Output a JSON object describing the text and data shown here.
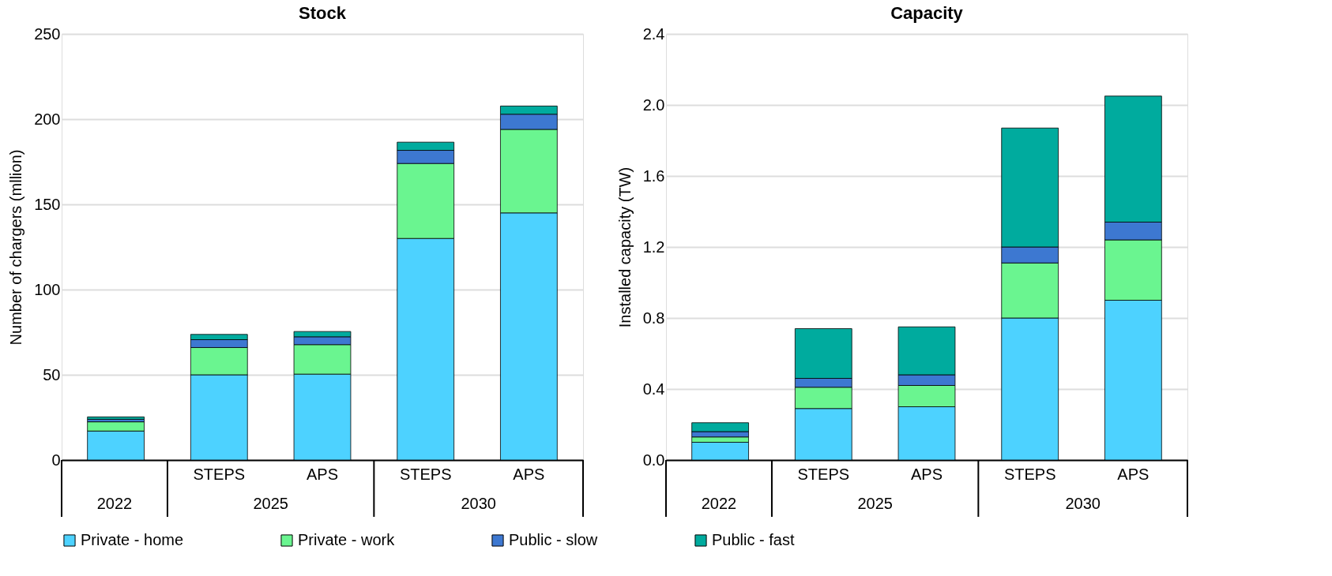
{
  "chart_data": [
    {
      "type": "bar",
      "title": "Stock",
      "ylabel": "Number of chargers (mllion)",
      "categories": [
        null,
        "STEPS",
        "APS",
        "STEPS",
        "APS"
      ],
      "stacked": true,
      "grid": "y",
      "legend": "bottom",
      "ylim": [
        0,
        250
      ],
      "yticks": [
        0,
        50,
        100,
        150,
        200,
        250
      ],
      "annotations": [
        "2022",
        "2025",
        "2030"
      ],
      "series": [
        {
          "name": "Private - home",
          "color": "#4dd2ff",
          "values": [
            17,
            50,
            50.4,
            130,
            145
          ]
        },
        {
          "name": "Private - work",
          "color": "#6af590",
          "values": [
            5.4,
            16,
            17.3,
            44,
            49
          ]
        },
        {
          "name": "Public - slow",
          "color": "#3d78d1",
          "values": [
            1.5,
            4.6,
            4.6,
            7.7,
            8.9
          ]
        },
        {
          "name": "Public - fast",
          "color": "#00ab9e",
          "values": [
            1.4,
            3.1,
            3.1,
            4.8,
            4.8
          ]
        }
      ]
    },
    {
      "type": "bar",
      "title": "Capacity",
      "ylabel": "Installed capacity (TW)",
      "categories": [
        null,
        "STEPS",
        "APS",
        "STEPS",
        "APS"
      ],
      "stacked": true,
      "grid": "y",
      "legend": "bottom",
      "ylim": [
        0,
        2.4
      ],
      "yticks": [
        {
          "value": 0,
          "label": "0.0"
        },
        0.4,
        0.8,
        1.2,
        1.6,
        {
          "value": 2,
          "label": "2.0"
        },
        2.4
      ],
      "annotations": [
        "2022",
        "2025",
        "2030"
      ],
      "series": [
        {
          "name": "Private - home",
          "color": "#4dd2ff",
          "values": [
            0.1,
            0.29,
            0.3,
            0.8,
            0.9
          ]
        },
        {
          "name": "Private - work",
          "color": "#6af590",
          "values": [
            0.03,
            0.12,
            0.12,
            0.31,
            0.34
          ]
        },
        {
          "name": "Public - slow",
          "color": "#3d78d1",
          "values": [
            0.03,
            0.05,
            0.06,
            0.09,
            0.1
          ]
        },
        {
          "name": "Public - fast",
          "color": "#00ab9e",
          "values": [
            0.05,
            0.28,
            0.27,
            0.67,
            0.71
          ]
        }
      ]
    }
  ]
}
